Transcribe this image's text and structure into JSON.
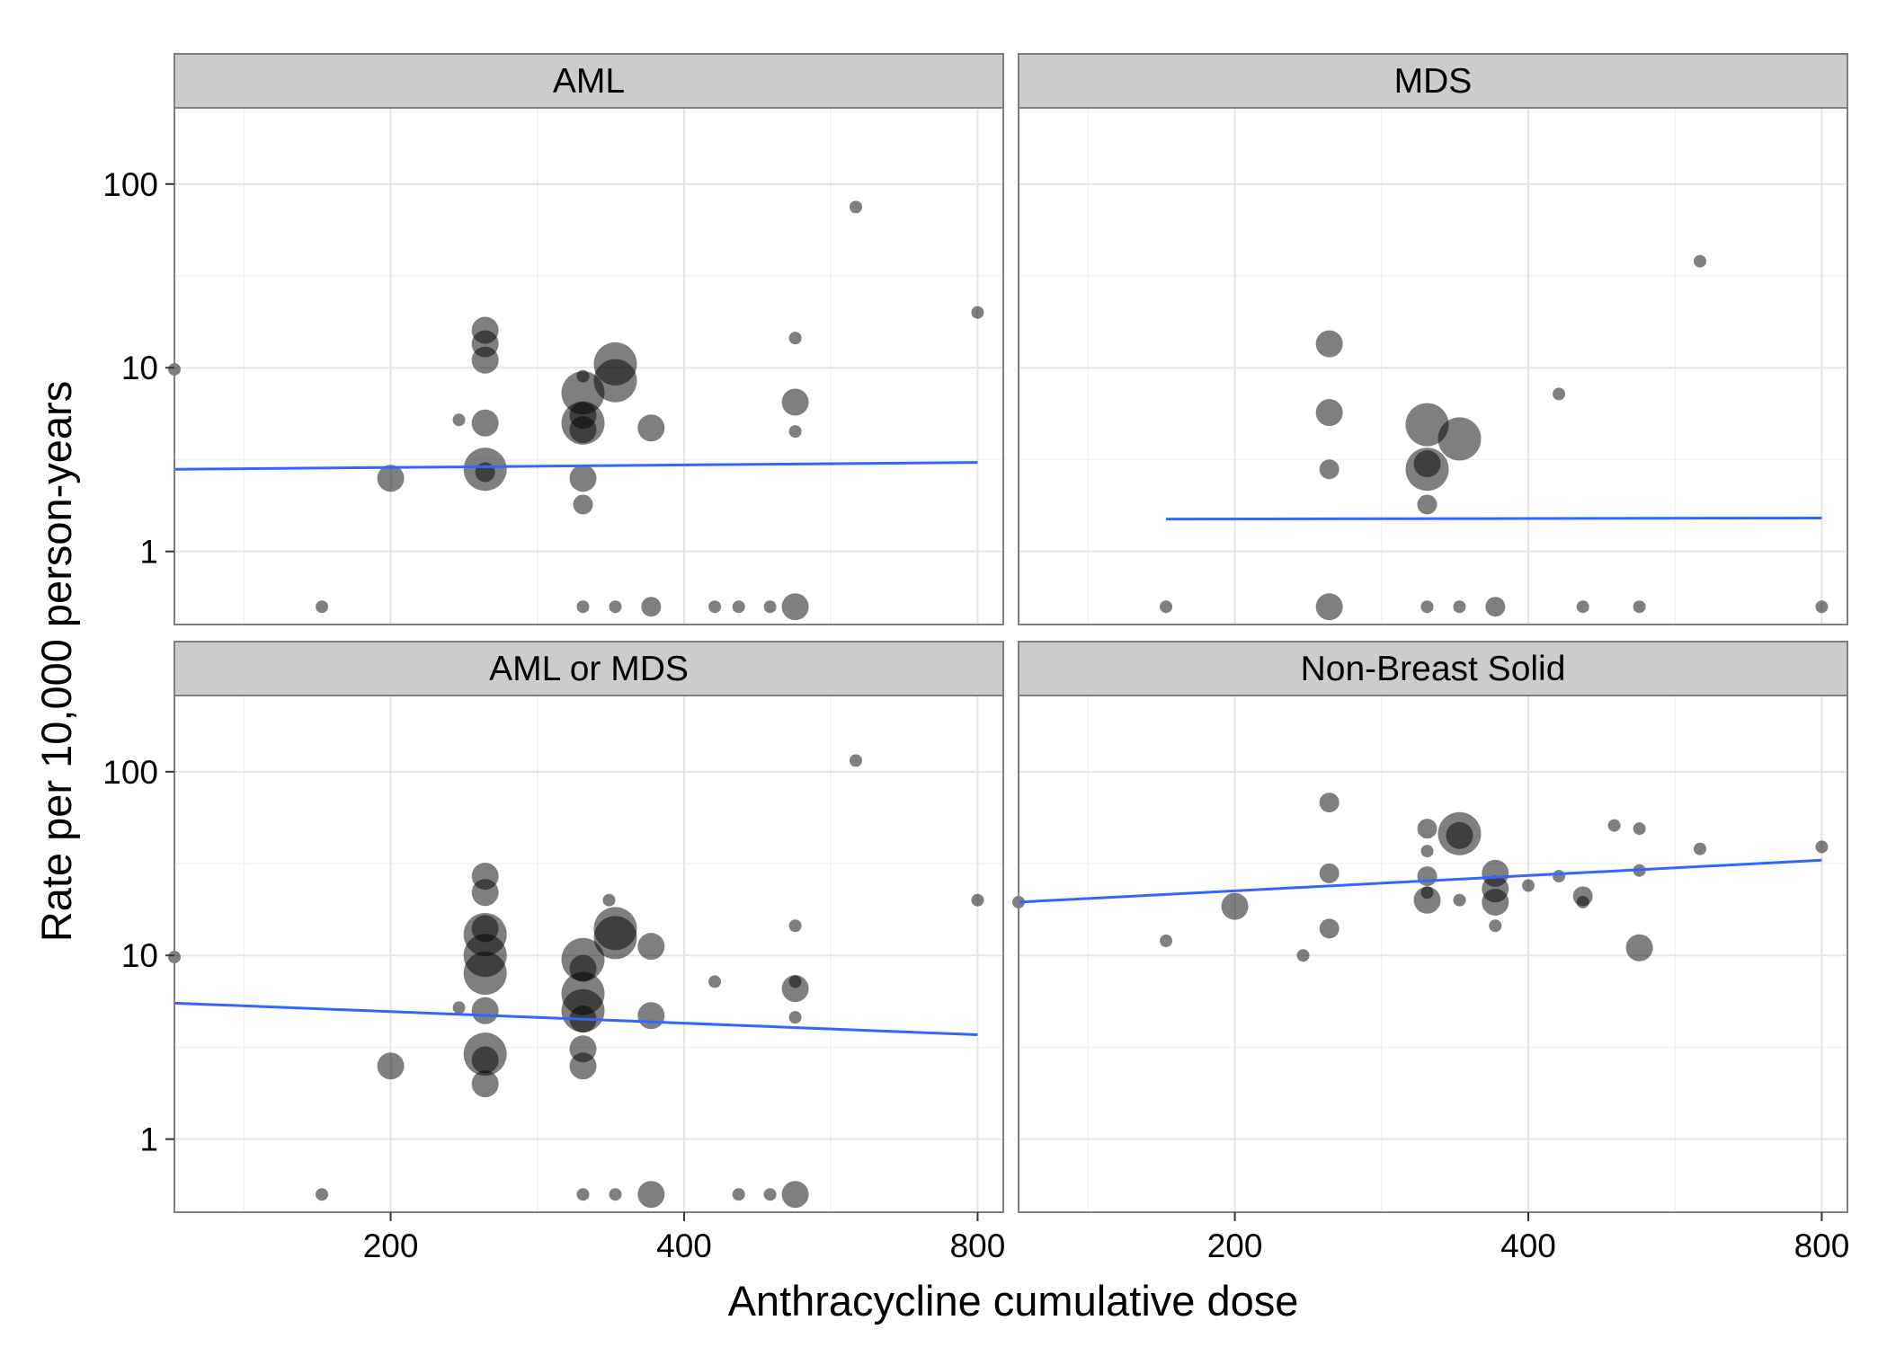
{
  "chart_data": {
    "type": "scatter",
    "x_label": "Anthracycline cumulative dose",
    "y_label": "Rate per 10,000 person-years",
    "x_scale": "log",
    "y_scale": "log",
    "x_range": [
      120,
      850
    ],
    "y_range": [
      0.4,
      260
    ],
    "x_ticks": [
      200,
      400,
      800
    ],
    "y_ticks": [
      1,
      10,
      100
    ],
    "grid": true,
    "point_color": "#000000",
    "point_opacity": 0.5,
    "trend_color": "#3366FF",
    "panels": [
      {
        "title": "AML",
        "trend": [
          [
            120,
            2.8
          ],
          [
            800,
            3.05
          ]
        ],
        "points": [
          {
            "x": 120,
            "y": 9.8,
            "size": 1
          },
          {
            "x": 170,
            "y": 0.5,
            "size": 1
          },
          {
            "x": 200,
            "y": 2.5,
            "size": 3
          },
          {
            "x": 235,
            "y": 5.2,
            "size": 1
          },
          {
            "x": 250,
            "y": 16,
            "size": 3
          },
          {
            "x": 250,
            "y": 13.5,
            "size": 3
          },
          {
            "x": 250,
            "y": 11,
            "size": 3
          },
          {
            "x": 250,
            "y": 5,
            "size": 3
          },
          {
            "x": 250,
            "y": 2.8,
            "size": 5
          },
          {
            "x": 250,
            "y": 2.7,
            "size": 2
          },
          {
            "x": 315,
            "y": 9,
            "size": 1
          },
          {
            "x": 315,
            "y": 7.3,
            "size": 5
          },
          {
            "x": 315,
            "y": 5.5,
            "size": 3
          },
          {
            "x": 315,
            "y": 5,
            "size": 5
          },
          {
            "x": 315,
            "y": 4.6,
            "size": 3
          },
          {
            "x": 315,
            "y": 2.5,
            "size": 3
          },
          {
            "x": 315,
            "y": 1.8,
            "size": 2
          },
          {
            "x": 315,
            "y": 0.5,
            "size": 1
          },
          {
            "x": 340,
            "y": 10.5,
            "size": 5
          },
          {
            "x": 340,
            "y": 8.5,
            "size": 5
          },
          {
            "x": 340,
            "y": 0.5,
            "size": 1
          },
          {
            "x": 370,
            "y": 4.7,
            "size": 3
          },
          {
            "x": 370,
            "y": 0.5,
            "size": 2
          },
          {
            "x": 430,
            "y": 0.5,
            "size": 1
          },
          {
            "x": 455,
            "y": 0.5,
            "size": 1
          },
          {
            "x": 490,
            "y": 0.5,
            "size": 1
          },
          {
            "x": 520,
            "y": 14.5,
            "size": 1
          },
          {
            "x": 520,
            "y": 6.5,
            "size": 3
          },
          {
            "x": 520,
            "y": 4.5,
            "size": 1
          },
          {
            "x": 520,
            "y": 0.5,
            "size": 3
          },
          {
            "x": 600,
            "y": 75,
            "size": 1
          },
          {
            "x": 800,
            "y": 20,
            "size": 1
          }
        ]
      },
      {
        "title": "MDS",
        "trend": [
          [
            170,
            1.5
          ],
          [
            800,
            1.52
          ]
        ],
        "points": [
          {
            "x": 170,
            "y": 0.5,
            "size": 1
          },
          {
            "x": 250,
            "y": 13.5,
            "size": 3
          },
          {
            "x": 250,
            "y": 5.7,
            "size": 3
          },
          {
            "x": 250,
            "y": 2.8,
            "size": 2
          },
          {
            "x": 250,
            "y": 0.5,
            "size": 3
          },
          {
            "x": 315,
            "y": 4.9,
            "size": 5
          },
          {
            "x": 315,
            "y": 3,
            "size": 3
          },
          {
            "x": 315,
            "y": 2.8,
            "size": 5
          },
          {
            "x": 315,
            "y": 1.8,
            "size": 2
          },
          {
            "x": 315,
            "y": 0.5,
            "size": 1
          },
          {
            "x": 340,
            "y": 4.1,
            "size": 5
          },
          {
            "x": 340,
            "y": 0.5,
            "size": 1
          },
          {
            "x": 370,
            "y": 0.5,
            "size": 2
          },
          {
            "x": 430,
            "y": 7.2,
            "size": 1
          },
          {
            "x": 455,
            "y": 0.5,
            "size": 1
          },
          {
            "x": 600,
            "y": 38,
            "size": 1
          },
          {
            "x": 520,
            "y": 0.5,
            "size": 1
          },
          {
            "x": 800,
            "y": 0.5,
            "size": 1
          }
        ]
      },
      {
        "title": "AML or MDS",
        "trend": [
          [
            120,
            5.5
          ],
          [
            800,
            3.7
          ]
        ],
        "points": [
          {
            "x": 120,
            "y": 9.8,
            "size": 1
          },
          {
            "x": 170,
            "y": 0.5,
            "size": 1
          },
          {
            "x": 200,
            "y": 2.5,
            "size": 3
          },
          {
            "x": 235,
            "y": 5.2,
            "size": 1
          },
          {
            "x": 250,
            "y": 27,
            "size": 3
          },
          {
            "x": 250,
            "y": 22,
            "size": 3
          },
          {
            "x": 250,
            "y": 14,
            "size": 3
          },
          {
            "x": 250,
            "y": 13,
            "size": 5
          },
          {
            "x": 250,
            "y": 10,
            "size": 5
          },
          {
            "x": 250,
            "y": 8,
            "size": 5
          },
          {
            "x": 250,
            "y": 5,
            "size": 3
          },
          {
            "x": 250,
            "y": 2.9,
            "size": 5
          },
          {
            "x": 250,
            "y": 2.7,
            "size": 3
          },
          {
            "x": 250,
            "y": 2,
            "size": 3
          },
          {
            "x": 315,
            "y": 9.5,
            "size": 5
          },
          {
            "x": 315,
            "y": 8.5,
            "size": 3
          },
          {
            "x": 315,
            "y": 6.2,
            "size": 5
          },
          {
            "x": 315,
            "y": 5,
            "size": 5
          },
          {
            "x": 315,
            "y": 4.5,
            "size": 3
          },
          {
            "x": 315,
            "y": 3.1,
            "size": 3
          },
          {
            "x": 315,
            "y": 2.5,
            "size": 3
          },
          {
            "x": 315,
            "y": 0.5,
            "size": 1
          },
          {
            "x": 335,
            "y": 20,
            "size": 1
          },
          {
            "x": 340,
            "y": 14,
            "size": 5
          },
          {
            "x": 340,
            "y": 12.5,
            "size": 5
          },
          {
            "x": 340,
            "y": 0.5,
            "size": 1
          },
          {
            "x": 370,
            "y": 11.2,
            "size": 3
          },
          {
            "x": 370,
            "y": 4.7,
            "size": 3
          },
          {
            "x": 370,
            "y": 0.5,
            "size": 3
          },
          {
            "x": 430,
            "y": 7.2,
            "size": 1
          },
          {
            "x": 455,
            "y": 0.5,
            "size": 1
          },
          {
            "x": 490,
            "y": 0.5,
            "size": 1
          },
          {
            "x": 520,
            "y": 14.5,
            "size": 1
          },
          {
            "x": 520,
            "y": 7.2,
            "size": 1
          },
          {
            "x": 520,
            "y": 6.6,
            "size": 3
          },
          {
            "x": 520,
            "y": 4.6,
            "size": 1
          },
          {
            "x": 520,
            "y": 0.5,
            "size": 3
          },
          {
            "x": 600,
            "y": 115,
            "size": 1
          },
          {
            "x": 800,
            "y": 20,
            "size": 1
          }
        ]
      },
      {
        "title": "Non-Breast Solid",
        "trend": [
          [
            120,
            19.5
          ],
          [
            800,
            33
          ]
        ],
        "points": [
          {
            "x": 120,
            "y": 19.5,
            "size": 1
          },
          {
            "x": 170,
            "y": 12,
            "size": 1
          },
          {
            "x": 200,
            "y": 18.5,
            "size": 3
          },
          {
            "x": 235,
            "y": 10,
            "size": 1
          },
          {
            "x": 250,
            "y": 68,
            "size": 2
          },
          {
            "x": 250,
            "y": 28,
            "size": 2
          },
          {
            "x": 250,
            "y": 14,
            "size": 2
          },
          {
            "x": 315,
            "y": 49,
            "size": 2
          },
          {
            "x": 315,
            "y": 37,
            "size": 1
          },
          {
            "x": 315,
            "y": 27,
            "size": 2
          },
          {
            "x": 315,
            "y": 22,
            "size": 1
          },
          {
            "x": 315,
            "y": 20,
            "size": 3
          },
          {
            "x": 340,
            "y": 46,
            "size": 5
          },
          {
            "x": 340,
            "y": 45,
            "size": 3
          },
          {
            "x": 340,
            "y": 20,
            "size": 1
          },
          {
            "x": 370,
            "y": 28,
            "size": 3
          },
          {
            "x": 370,
            "y": 23,
            "size": 3
          },
          {
            "x": 370,
            "y": 19.5,
            "size": 3
          },
          {
            "x": 370,
            "y": 14.5,
            "size": 1
          },
          {
            "x": 400,
            "y": 24,
            "size": 1
          },
          {
            "x": 430,
            "y": 27,
            "size": 1
          },
          {
            "x": 455,
            "y": 21,
            "size": 2
          },
          {
            "x": 455,
            "y": 19.5,
            "size": 1
          },
          {
            "x": 490,
            "y": 51,
            "size": 1
          },
          {
            "x": 520,
            "y": 49,
            "size": 1
          },
          {
            "x": 520,
            "y": 29,
            "size": 1
          },
          {
            "x": 520,
            "y": 11,
            "size": 3
          },
          {
            "x": 600,
            "y": 38,
            "size": 1
          },
          {
            "x": 800,
            "y": 39,
            "size": 1
          }
        ]
      }
    ]
  }
}
